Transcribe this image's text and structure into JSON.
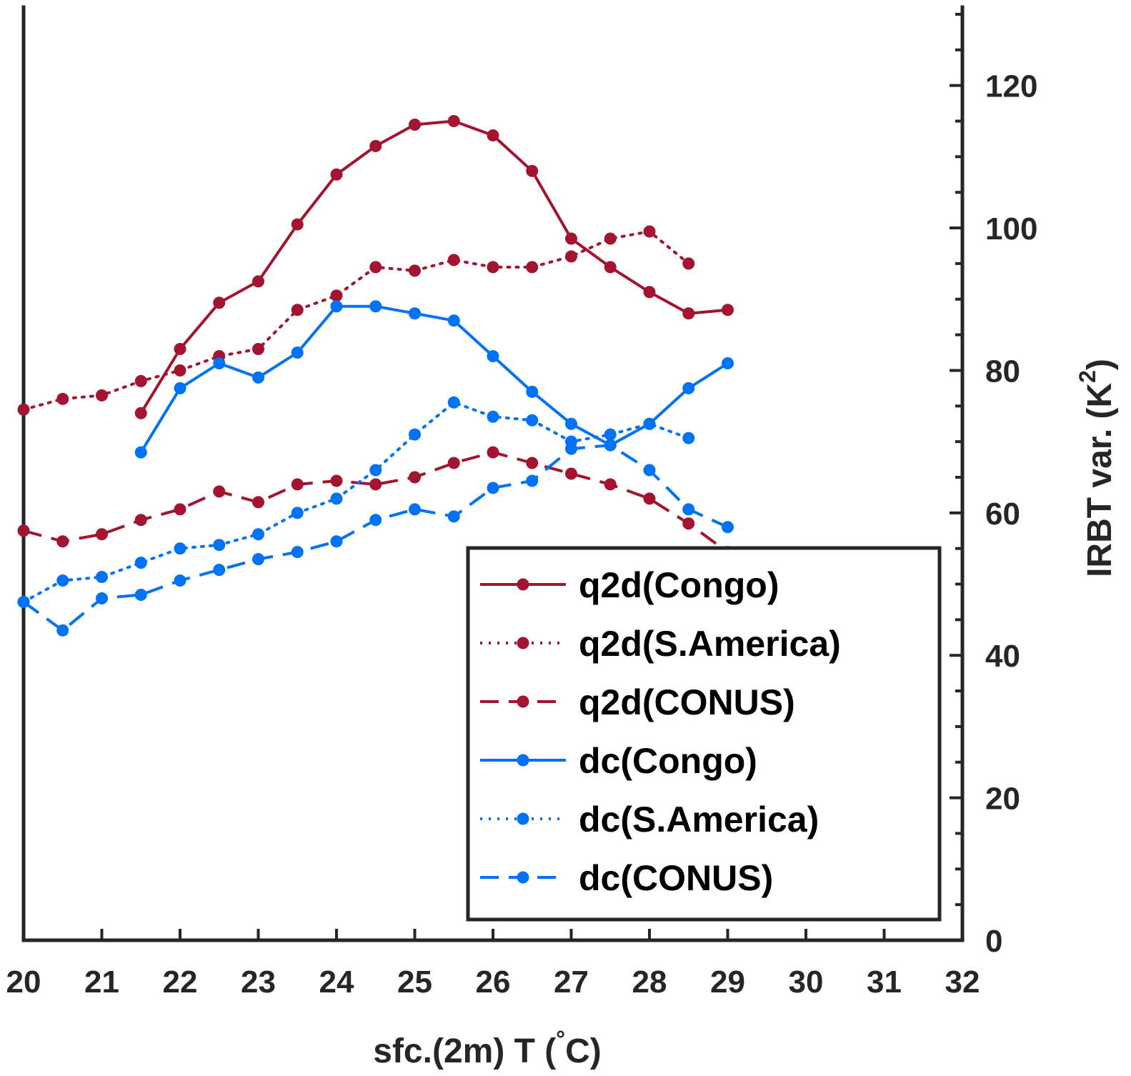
{
  "chart_data": {
    "type": "line",
    "xlabel": "sfc.(2m) T (°C)",
    "xlabel_parts": {
      "main": "sfc.(2m) T (",
      "degree": "°",
      "unit": "C)"
    },
    "ylabel": "IRBT var. (K^2)",
    "ylabel_parts": {
      "main": "IRBT var. (K",
      "sup": "2",
      "close": ")"
    },
    "xlim": [
      20,
      32
    ],
    "ylim": [
      0,
      131
    ],
    "xticks": [
      20,
      21,
      22,
      23,
      24,
      25,
      26,
      27,
      28,
      29,
      30,
      31,
      32
    ],
    "yticks": [
      0,
      20,
      40,
      60,
      80,
      100,
      120
    ],
    "y_axis_side": "right",
    "grid": false,
    "legend_position": "bottom-right",
    "colors": {
      "q2d": "#A2142F",
      "dc": "#0072F5",
      "axis": "#262626"
    },
    "series": [
      {
        "name": "q2d(Congo)",
        "color": "#A2142F",
        "line_style": "solid",
        "marker": "dot",
        "x": [
          21.5,
          22,
          22.5,
          23,
          23.5,
          24,
          24.5,
          25,
          25.5,
          26,
          26.5,
          27,
          27.5,
          28,
          28.5,
          29
        ],
        "y": [
          74,
          83,
          89.5,
          92.5,
          100.5,
          107.5,
          111.5,
          114.5,
          115,
          113,
          108,
          98.5,
          94.5,
          91,
          88,
          88.5
        ]
      },
      {
        "name": "q2d(S.America)",
        "color": "#A2142F",
        "line_style": "dotted",
        "marker": "dot",
        "x": [
          20,
          20.5,
          21,
          21.5,
          22,
          22.5,
          23,
          23.5,
          24,
          24.5,
          25,
          25.5,
          26,
          26.5,
          27,
          27.5,
          28,
          28.5
        ],
        "y": [
          74.5,
          76,
          76.5,
          78.5,
          80,
          82,
          83,
          88.5,
          90.5,
          94.5,
          94,
          95.5,
          94.5,
          94.5,
          96,
          98.5,
          99.5,
          95
        ]
      },
      {
        "name": "q2d(CONUS)",
        "color": "#A2142F",
        "line_style": "dashed",
        "marker": "dot",
        "x": [
          20,
          20.5,
          21,
          21.5,
          22,
          22.5,
          23,
          23.5,
          24,
          24.5,
          25,
          25.5,
          26,
          26.5,
          27,
          27.5,
          28,
          28.5,
          29
        ],
        "y": [
          57.5,
          56,
          57,
          59,
          60.5,
          63,
          61.5,
          64,
          64.5,
          64,
          65,
          67,
          68.5,
          67,
          65.5,
          64,
          62,
          58.5,
          54.5
        ]
      },
      {
        "name": "dc(Congo)",
        "color": "#0072F5",
        "line_style": "solid",
        "marker": "dot",
        "x": [
          21.5,
          22,
          22.5,
          23,
          23.5,
          24,
          24.5,
          25,
          25.5,
          26,
          26.5,
          27,
          27.5,
          28,
          28.5,
          29
        ],
        "y": [
          68.5,
          77.5,
          81,
          79,
          82.5,
          89,
          89,
          88,
          87,
          82,
          77,
          72.5,
          69.5,
          72.5,
          77.5,
          81
        ]
      },
      {
        "name": "dc(S.America)",
        "color": "#0072F5",
        "line_style": "dotted",
        "marker": "dot",
        "x": [
          20,
          20.5,
          21,
          21.5,
          22,
          22.5,
          23,
          23.5,
          24,
          24.5,
          25,
          25.5,
          26,
          26.5,
          27,
          27.5,
          28,
          28.5
        ],
        "y": [
          47.5,
          50.5,
          51,
          53,
          55,
          55.5,
          57,
          60,
          62,
          66,
          71,
          75.5,
          73.5,
          73,
          70,
          71,
          72.5,
          70.5
        ]
      },
      {
        "name": "dc(CONUS)",
        "color": "#0072F5",
        "line_style": "dashed",
        "marker": "dot",
        "x": [
          20,
          20.5,
          21,
          21.5,
          22,
          22.5,
          23,
          23.5,
          24,
          24.5,
          25,
          25.5,
          26,
          26.5,
          27,
          27.5,
          28,
          28.5,
          29
        ],
        "y": [
          47.5,
          43.5,
          48,
          48.5,
          50.5,
          52,
          53.5,
          54.5,
          56,
          59,
          60.5,
          59.5,
          63.5,
          64.5,
          69,
          69.5,
          66,
          60.5,
          58
        ]
      }
    ]
  }
}
